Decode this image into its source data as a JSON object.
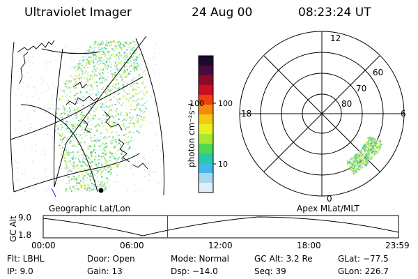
{
  "header": {
    "title": "Ultraviolet Imager",
    "date": "24 Aug 00",
    "time": "08:23:24 UT"
  },
  "colorbar": {
    "unit_label": "photon cm⁻²s⁻¹",
    "ticks": [
      "100",
      "10"
    ],
    "scale": "log",
    "colors": [
      "#1a0a2e",
      "#4b0a3c",
      "#8b0a2a",
      "#c8101e",
      "#f04010",
      "#f58a10",
      "#f8c810",
      "#e8f020",
      "#a8e830",
      "#50d850",
      "#28c8a8",
      "#40b8e8",
      "#a8d8f0",
      "#e0eef8"
    ]
  },
  "panels": {
    "geo_label": "Geographic Lat/Lon",
    "apex_label": "Apex MLat/MLT"
  },
  "polar": {
    "mlt_labels": {
      "top": "12",
      "bottom": "0",
      "left": "18",
      "right": "6"
    },
    "lat_labels": [
      "60",
      "70",
      "80"
    ]
  },
  "altitude_plot": {
    "ylabel": "GC Alt",
    "yticks": [
      "9.0",
      "1.8"
    ],
    "xticks": [
      "00:00",
      "06:00",
      "12:00",
      "18:00",
      "23:59"
    ],
    "current_time_marker_fraction": 0.35,
    "marker_color": "#ff0000"
  },
  "status": {
    "flt": "Flt:  LBHL",
    "ip": "IP:  9.0",
    "door": "Door:  Open",
    "gain": "Gain:  13",
    "mode": "Mode:  Normal",
    "dsp": "Dsp:   −14.0",
    "gcalt": "GC Alt:  3.2 Re",
    "seq": "Seq:  39",
    "glat": "GLat:  −77.5",
    "glon": "GLon:  226.7"
  }
}
